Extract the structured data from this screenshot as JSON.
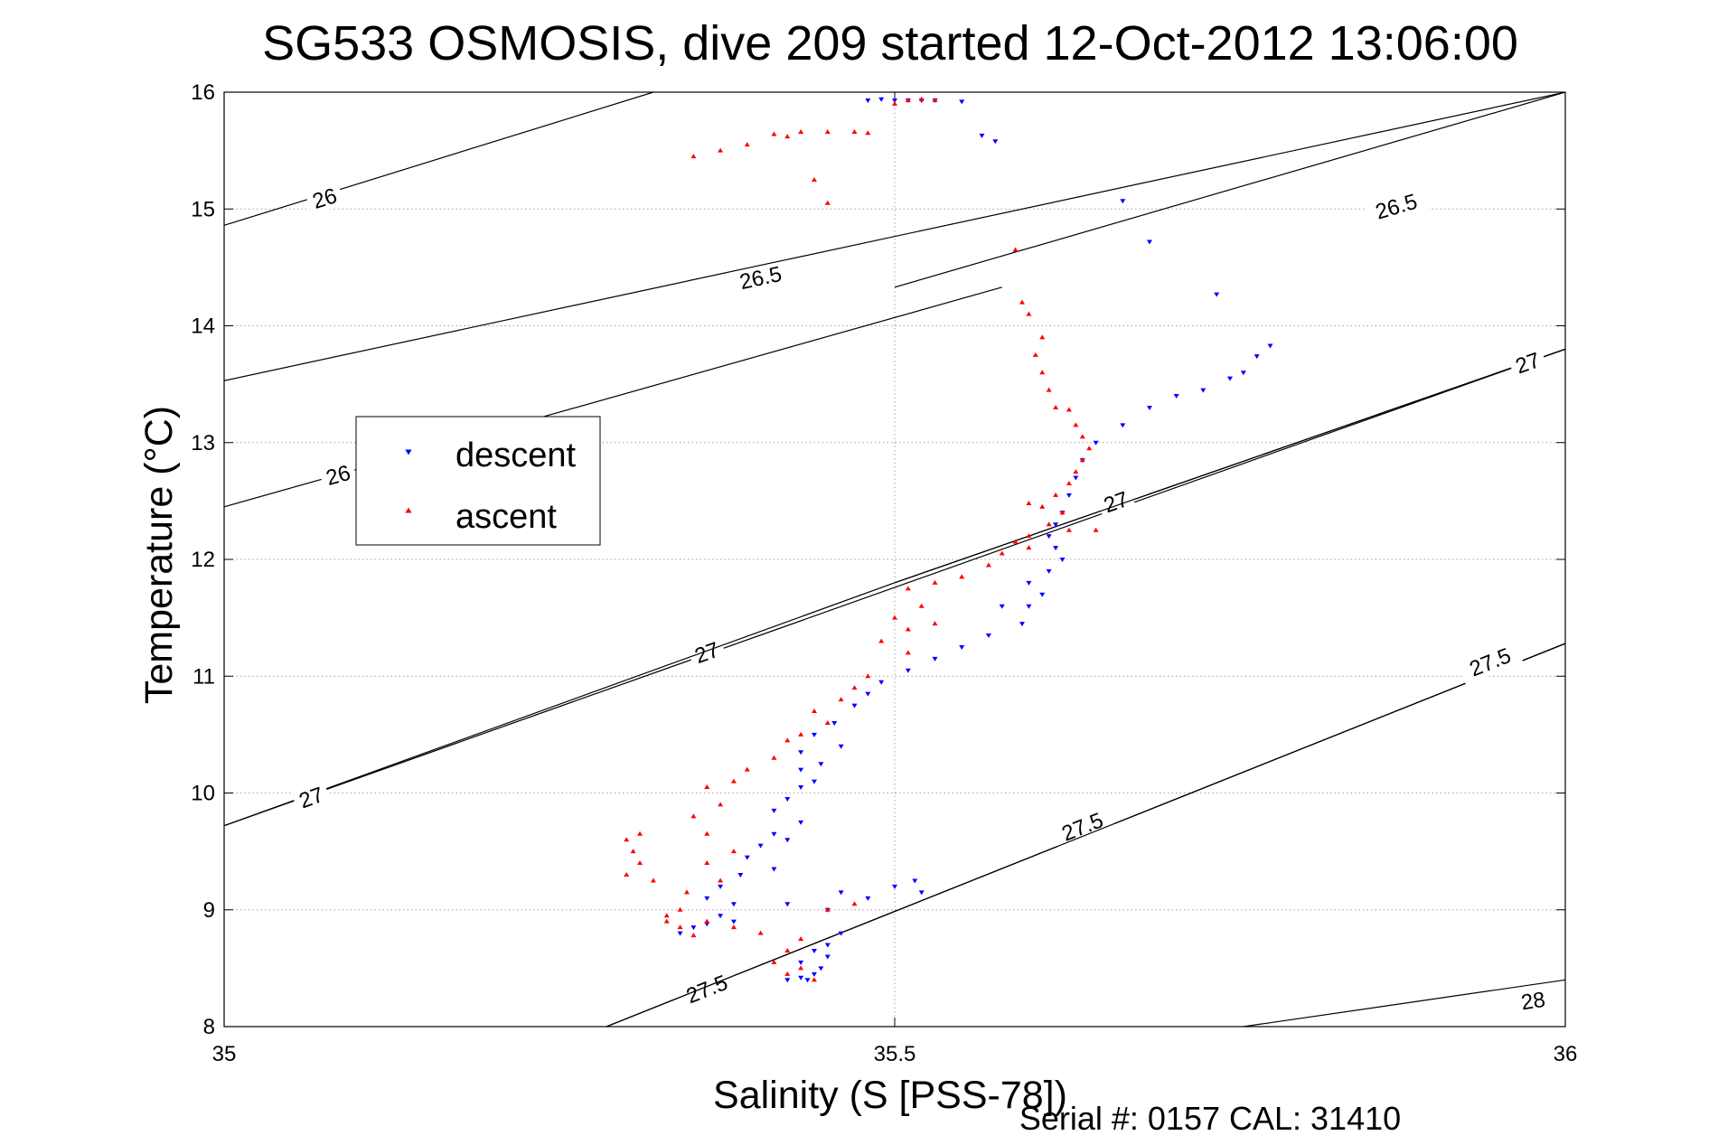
{
  "chart_data": {
    "type": "scatter",
    "title": "SG533 OSMOSIS, dive 209 started 12-Oct-2012 13:06:00",
    "xlabel": "Salinity (S [PSS-78])",
    "ylabel": "Temperature (°C)",
    "footer": "Serial #: 0157  CAL: 31410",
    "xlim": [
      35,
      36
    ],
    "ylim": [
      8,
      16
    ],
    "x_ticks": [
      35,
      35.5,
      36
    ],
    "x_tick_labels": [
      "35",
      "35.5",
      "36"
    ],
    "y_ticks": [
      8,
      9,
      10,
      11,
      12,
      13,
      14,
      15,
      16
    ],
    "y_tick_labels": [
      "8",
      "9",
      "10",
      "11",
      "12",
      "13",
      "14",
      "15",
      "16"
    ],
    "grid": true,
    "legend_position": "middle-left",
    "density_contours": [
      {
        "label": "26",
        "x": [
          35,
          35.32
        ],
        "y": [
          14.86,
          16.0
        ],
        "label_x": 35.075,
        "label_y": 15.09
      },
      {
        "label": "26",
        "x": [
          35,
          35.58
        ],
        "y": [
          12.45,
          14.33
        ],
        "label_x": 35.085,
        "label_y": 12.72
      },
      {
        "label": "26.5",
        "x": [
          35,
          36
        ],
        "y": [
          13.53,
          16.0
        ],
        "label_x": 35.4,
        "label_y": 14.41
      },
      {
        "label": "26.5",
        "x": [
          35.5,
          36
        ],
        "y": [
          14.33,
          16.0
        ],
        "label_x": 35.874,
        "label_y": 15.02
      },
      {
        "label": "27",
        "x": [
          35,
          36
        ],
        "y": [
          9.72,
          13.8
        ],
        "label_x": 35.36,
        "label_y": 11.2
      },
      {
        "label": "27",
        "x": [
          35,
          35.5
        ],
        "y": [
          9.72,
          11.8
        ],
        "label_x": 35.065,
        "label_y": 9.96
      },
      {
        "label": "27",
        "x": [
          35.5,
          36
        ],
        "y": [
          11.8,
          13.8
        ],
        "label_x": 35.665,
        "label_y": 12.49
      },
      {
        "label": "27",
        "x": [
          35.5,
          36
        ],
        "y": [
          11.8,
          13.8
        ],
        "label_x": 35.972,
        "label_y": 13.68
      },
      {
        "label": "27.5",
        "x": [
          35.285,
          36
        ],
        "y": [
          8.0,
          11.28
        ],
        "label_x": 35.36,
        "label_y": 8.32
      },
      {
        "label": "27.5",
        "x": [
          35.285,
          36
        ],
        "y": [
          8.0,
          11.28
        ],
        "label_x": 35.64,
        "label_y": 9.71
      },
      {
        "label": "27.5",
        "x": [
          35.285,
          36
        ],
        "y": [
          8.0,
          11.28
        ],
        "label_x": 35.944,
        "label_y": 11.12
      },
      {
        "label": "28",
        "x": [
          35.76,
          36
        ],
        "y": [
          8.0,
          8.4
        ],
        "label_x": 35.976,
        "label_y": 8.22
      }
    ],
    "series": [
      {
        "name": "descent",
        "color": "#0000ff",
        "marker": "triangle-down",
        "points": [
          [
            35.51,
            15.93
          ],
          [
            35.52,
            15.93
          ],
          [
            35.53,
            15.93
          ],
          [
            35.5,
            15.93
          ],
          [
            35.55,
            15.92
          ],
          [
            35.49,
            15.94
          ],
          [
            35.48,
            15.93
          ],
          [
            35.565,
            15.63
          ],
          [
            35.575,
            15.58
          ],
          [
            35.67,
            15.07
          ],
          [
            35.69,
            14.72
          ],
          [
            35.74,
            14.27
          ],
          [
            35.78,
            13.83
          ],
          [
            35.77,
            13.74
          ],
          [
            35.76,
            13.6
          ],
          [
            35.75,
            13.55
          ],
          [
            35.73,
            13.45
          ],
          [
            35.71,
            13.4
          ],
          [
            35.69,
            13.3
          ],
          [
            35.67,
            13.15
          ],
          [
            35.65,
            13.0
          ],
          [
            35.64,
            12.85
          ],
          [
            35.635,
            12.7
          ],
          [
            35.63,
            12.55
          ],
          [
            35.625,
            12.4
          ],
          [
            35.62,
            12.3
          ],
          [
            35.615,
            12.2
          ],
          [
            35.62,
            12.1
          ],
          [
            35.625,
            12.0
          ],
          [
            35.615,
            11.9
          ],
          [
            35.6,
            11.8
          ],
          [
            35.61,
            11.7
          ],
          [
            35.6,
            11.6
          ],
          [
            35.58,
            11.6
          ],
          [
            35.595,
            11.45
          ],
          [
            35.57,
            11.35
          ],
          [
            35.55,
            11.25
          ],
          [
            35.53,
            11.15
          ],
          [
            35.51,
            11.05
          ],
          [
            35.49,
            10.95
          ],
          [
            35.48,
            10.85
          ],
          [
            35.47,
            10.75
          ],
          [
            35.455,
            10.6
          ],
          [
            35.44,
            10.5
          ],
          [
            35.46,
            10.4
          ],
          [
            35.43,
            10.35
          ],
          [
            35.445,
            10.25
          ],
          [
            35.43,
            10.2
          ],
          [
            35.44,
            10.1
          ],
          [
            35.43,
            10.05
          ],
          [
            35.42,
            9.95
          ],
          [
            35.41,
            9.85
          ],
          [
            35.43,
            9.75
          ],
          [
            35.41,
            9.65
          ],
          [
            35.42,
            9.6
          ],
          [
            35.4,
            9.55
          ],
          [
            35.39,
            9.45
          ],
          [
            35.41,
            9.35
          ],
          [
            35.385,
            9.3
          ],
          [
            35.37,
            9.2
          ],
          [
            35.36,
            9.1
          ],
          [
            35.38,
            9.05
          ],
          [
            35.37,
            8.95
          ],
          [
            35.36,
            8.88
          ],
          [
            35.34,
            8.8
          ],
          [
            35.35,
            8.85
          ],
          [
            35.38,
            8.9
          ],
          [
            35.42,
            9.05
          ],
          [
            35.46,
            9.15
          ],
          [
            35.5,
            9.2
          ],
          [
            35.515,
            9.25
          ],
          [
            35.52,
            9.15
          ],
          [
            35.48,
            9.1
          ],
          [
            35.45,
            9.0
          ],
          [
            35.44,
            8.65
          ],
          [
            35.43,
            8.55
          ],
          [
            35.445,
            8.5
          ],
          [
            35.44,
            8.45
          ],
          [
            35.43,
            8.42
          ],
          [
            35.435,
            8.4
          ],
          [
            35.42,
            8.4
          ],
          [
            35.45,
            8.6
          ],
          [
            35.45,
            8.7
          ],
          [
            35.46,
            8.8
          ]
        ]
      },
      {
        "name": "ascent",
        "color": "#ff0000",
        "marker": "triangle-up",
        "points": [
          [
            35.35,
            15.45
          ],
          [
            35.37,
            15.5
          ],
          [
            35.39,
            15.55
          ],
          [
            35.41,
            15.64
          ],
          [
            35.43,
            15.66
          ],
          [
            35.45,
            15.66
          ],
          [
            35.47,
            15.66
          ],
          [
            35.48,
            15.65
          ],
          [
            35.42,
            15.62
          ],
          [
            35.44,
            15.25
          ],
          [
            35.45,
            15.05
          ],
          [
            35.5,
            15.9
          ],
          [
            35.51,
            15.93
          ],
          [
            35.52,
            15.94
          ],
          [
            35.53,
            15.93
          ],
          [
            35.59,
            14.65
          ],
          [
            35.595,
            14.2
          ],
          [
            35.6,
            14.1
          ],
          [
            35.61,
            13.9
          ],
          [
            35.605,
            13.75
          ],
          [
            35.61,
            13.6
          ],
          [
            35.615,
            13.45
          ],
          [
            35.62,
            13.3
          ],
          [
            35.63,
            13.28
          ],
          [
            35.635,
            13.15
          ],
          [
            35.64,
            13.05
          ],
          [
            35.645,
            12.95
          ],
          [
            35.64,
            12.85
          ],
          [
            35.635,
            12.75
          ],
          [
            35.63,
            12.65
          ],
          [
            35.62,
            12.55
          ],
          [
            35.6,
            12.48
          ],
          [
            35.61,
            12.45
          ],
          [
            35.625,
            12.4
          ],
          [
            35.615,
            12.3
          ],
          [
            35.63,
            12.25
          ],
          [
            35.65,
            12.25
          ],
          [
            35.6,
            12.2
          ],
          [
            35.59,
            12.15
          ],
          [
            35.6,
            12.1
          ],
          [
            35.58,
            12.05
          ],
          [
            35.57,
            11.95
          ],
          [
            35.55,
            11.85
          ],
          [
            35.53,
            11.8
          ],
          [
            35.51,
            11.75
          ],
          [
            35.52,
            11.6
          ],
          [
            35.5,
            11.5
          ],
          [
            35.53,
            11.45
          ],
          [
            35.51,
            11.4
          ],
          [
            35.49,
            11.3
          ],
          [
            35.51,
            11.2
          ],
          [
            35.48,
            11.0
          ],
          [
            35.47,
            10.9
          ],
          [
            35.46,
            10.8
          ],
          [
            35.44,
            10.7
          ],
          [
            35.45,
            10.6
          ],
          [
            35.43,
            10.5
          ],
          [
            35.42,
            10.45
          ],
          [
            35.41,
            10.3
          ],
          [
            35.39,
            10.2
          ],
          [
            35.38,
            10.1
          ],
          [
            35.36,
            10.05
          ],
          [
            35.37,
            9.9
          ],
          [
            35.35,
            9.8
          ],
          [
            35.36,
            9.65
          ],
          [
            35.38,
            9.5
          ],
          [
            35.36,
            9.4
          ],
          [
            35.37,
            9.25
          ],
          [
            35.345,
            9.15
          ],
          [
            35.34,
            9.0
          ],
          [
            35.36,
            8.9
          ],
          [
            35.38,
            8.85
          ],
          [
            35.4,
            8.8
          ],
          [
            35.45,
            9.0
          ],
          [
            35.47,
            9.05
          ],
          [
            35.43,
            8.75
          ],
          [
            35.42,
            8.65
          ],
          [
            35.41,
            8.55
          ],
          [
            35.42,
            8.45
          ],
          [
            35.44,
            8.4
          ],
          [
            35.43,
            8.5
          ],
          [
            35.3,
            9.6
          ],
          [
            35.305,
            9.5
          ],
          [
            35.31,
            9.4
          ],
          [
            35.3,
            9.3
          ],
          [
            35.32,
            9.25
          ],
          [
            35.31,
            9.65
          ],
          [
            35.33,
            8.95
          ],
          [
            35.34,
            8.85
          ],
          [
            35.35,
            8.78
          ],
          [
            35.33,
            8.9
          ]
        ]
      }
    ]
  }
}
